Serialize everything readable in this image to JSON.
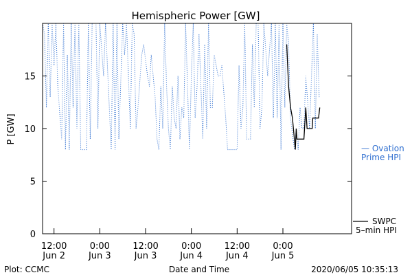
{
  "chart_data": {
    "type": "line",
    "title": "Hemispheric Power [GW]",
    "ylabel": "P [GW]",
    "xlabel": "Date and Time",
    "ylim": [
      0,
      20
    ],
    "yticks": [
      0,
      5,
      10,
      15
    ],
    "xlim": [
      "2020-06-02T09:00",
      "2020-06-05T18:00"
    ],
    "xticks": [
      {
        "t": "2020-06-02T12:00",
        "line1": "12:00",
        "line2": "Jun 2"
      },
      {
        "t": "2020-06-03T00:00",
        "line1": "0:00",
        "line2": "Jun 3"
      },
      {
        "t": "2020-06-03T12:00",
        "line1": "12:00",
        "line2": "Jun 3"
      },
      {
        "t": "2020-06-04T00:00",
        "line1": "0:00",
        "line2": "Jun 4"
      },
      {
        "t": "2020-06-04T12:00",
        "line1": "12:00",
        "line2": "Jun 4"
      },
      {
        "t": "2020-06-05T00:00",
        "line1": "0:00",
        "line2": "Jun 5"
      }
    ],
    "grid": false,
    "legend_placement": "right",
    "series": [
      {
        "name": "Ovation Prime HPI",
        "color": "#2f6fd0",
        "style": "dotted",
        "points": [
          [
            "2020-06-02T09:00",
            20
          ],
          [
            "2020-06-02T09:30",
            19
          ],
          [
            "2020-06-02T10:00",
            12
          ],
          [
            "2020-06-02T10:30",
            20
          ],
          [
            "2020-06-02T11:00",
            13
          ],
          [
            "2020-06-02T11:30",
            20
          ],
          [
            "2020-06-02T12:00",
            16
          ],
          [
            "2020-06-02T12:30",
            20
          ],
          [
            "2020-06-02T13:00",
            14
          ],
          [
            "2020-06-02T14:00",
            9
          ],
          [
            "2020-06-02T14:30",
            20
          ],
          [
            "2020-06-02T15:00",
            8
          ],
          [
            "2020-06-02T15:30",
            17
          ],
          [
            "2020-06-02T16:00",
            8
          ],
          [
            "2020-06-02T16:30",
            20
          ],
          [
            "2020-06-02T17:00",
            12
          ],
          [
            "2020-06-02T17:30",
            20
          ],
          [
            "2020-06-02T18:00",
            10
          ],
          [
            "2020-06-02T18:30",
            20
          ],
          [
            "2020-06-02T19:00",
            8
          ],
          [
            "2020-06-02T20:30",
            8
          ],
          [
            "2020-06-02T21:00",
            20
          ],
          [
            "2020-06-02T21:30",
            9
          ],
          [
            "2020-06-02T22:00",
            20
          ],
          [
            "2020-06-02T23:00",
            20
          ],
          [
            "2020-06-02T23:30",
            10
          ],
          [
            "2020-06-03T00:00",
            20
          ],
          [
            "2020-06-03T01:00",
            15
          ],
          [
            "2020-06-03T01:30",
            20
          ],
          [
            "2020-06-03T02:00",
            16
          ],
          [
            "2020-06-03T03:00",
            8
          ],
          [
            "2020-06-03T03:30",
            20
          ],
          [
            "2020-06-03T04:00",
            8
          ],
          [
            "2020-06-03T04:30",
            20
          ],
          [
            "2020-06-03T05:00",
            9
          ],
          [
            "2020-06-03T06:00",
            20
          ],
          [
            "2020-06-03T06:30",
            17
          ],
          [
            "2020-06-03T07:00",
            20
          ],
          [
            "2020-06-03T08:00",
            10
          ],
          [
            "2020-06-03T08:30",
            20
          ],
          [
            "2020-06-03T09:00",
            19
          ],
          [
            "2020-06-03T09:30",
            10
          ],
          [
            "2020-06-03T10:00",
            12
          ],
          [
            "2020-06-03T11:00",
            17
          ],
          [
            "2020-06-03T11:30",
            18
          ],
          [
            "2020-06-03T12:30",
            15
          ],
          [
            "2020-06-03T13:00",
            14
          ],
          [
            "2020-06-03T13:30",
            17
          ],
          [
            "2020-06-03T14:30",
            13
          ],
          [
            "2020-06-03T15:00",
            9
          ],
          [
            "2020-06-03T15:30",
            8
          ],
          [
            "2020-06-03T16:00",
            14
          ],
          [
            "2020-06-03T16:30",
            10
          ],
          [
            "2020-06-03T17:00",
            20
          ],
          [
            "2020-06-03T17:30",
            14
          ],
          [
            "2020-06-03T18:00",
            10
          ],
          [
            "2020-06-03T18:30",
            8
          ],
          [
            "2020-06-03T19:00",
            14
          ],
          [
            "2020-06-03T19:30",
            11
          ],
          [
            "2020-06-03T20:00",
            10
          ],
          [
            "2020-06-03T20:30",
            15
          ],
          [
            "2020-06-03T21:00",
            9
          ],
          [
            "2020-06-03T21:30",
            12
          ],
          [
            "2020-06-03T22:00",
            11
          ],
          [
            "2020-06-03T22:30",
            20
          ],
          [
            "2020-06-03T23:30",
            8
          ],
          [
            "2020-06-04T00:00",
            15
          ],
          [
            "2020-06-04T00:30",
            20
          ],
          [
            "2020-06-04T01:00",
            11
          ],
          [
            "2020-06-04T01:30",
            14
          ],
          [
            "2020-06-04T02:00",
            19
          ],
          [
            "2020-06-04T03:00",
            9
          ],
          [
            "2020-06-04T03:30",
            18
          ],
          [
            "2020-06-04T04:00",
            10
          ],
          [
            "2020-06-04T04:30",
            20
          ],
          [
            "2020-06-04T05:00",
            12
          ],
          [
            "2020-06-04T05:30",
            12
          ],
          [
            "2020-06-04T06:00",
            17
          ],
          [
            "2020-06-04T07:00",
            15
          ],
          [
            "2020-06-04T07:30",
            15
          ],
          [
            "2020-06-04T08:00",
            16
          ],
          [
            "2020-06-04T09:00",
            11
          ],
          [
            "2020-06-04T09:30",
            8
          ],
          [
            "2020-06-04T12:00",
            8
          ],
          [
            "2020-06-04T12:30",
            16
          ],
          [
            "2020-06-04T13:00",
            10
          ],
          [
            "2020-06-04T13:30",
            12
          ],
          [
            "2020-06-04T14:00",
            20
          ],
          [
            "2020-06-04T14:30",
            9
          ],
          [
            "2020-06-04T15:30",
            9
          ],
          [
            "2020-06-04T16:00",
            18
          ],
          [
            "2020-06-04T16:30",
            12
          ],
          [
            "2020-06-04T17:00",
            20
          ],
          [
            "2020-06-04T17:30",
            20
          ],
          [
            "2020-06-04T18:00",
            10
          ],
          [
            "2020-06-04T18:30",
            12
          ],
          [
            "2020-06-04T19:00",
            20
          ],
          [
            "2020-06-04T20:00",
            15
          ],
          [
            "2020-06-04T21:00",
            20
          ],
          [
            "2020-06-04T21:30",
            11
          ],
          [
            "2020-06-04T22:00",
            20
          ],
          [
            "2020-06-04T22:30",
            11
          ],
          [
            "2020-06-04T23:00",
            20
          ],
          [
            "2020-06-04T23:30",
            8
          ],
          [
            "2020-06-05T00:00",
            20
          ],
          [
            "2020-06-05T00:30",
            12
          ],
          [
            "2020-06-05T01:00",
            20
          ],
          [
            "2020-06-05T01:30",
            18
          ],
          [
            "2020-06-05T02:00",
            11
          ],
          [
            "2020-06-05T03:00",
            8
          ],
          [
            "2020-06-05T03:30",
            10
          ],
          [
            "2020-06-05T04:00",
            8
          ],
          [
            "2020-06-05T04:30",
            12
          ],
          [
            "2020-06-05T05:00",
            10
          ],
          [
            "2020-06-05T05:30",
            10
          ],
          [
            "2020-06-05T06:00",
            15
          ],
          [
            "2020-06-05T07:00",
            10
          ],
          [
            "2020-06-05T08:00",
            20
          ],
          [
            "2020-06-05T08:30",
            10
          ],
          [
            "2020-06-05T09:00",
            19
          ],
          [
            "2020-06-05T09:30",
            13
          ]
        ]
      },
      {
        "name": "SWPC 5-min HPI",
        "color": "#000000",
        "style": "solid",
        "points": [
          [
            "2020-06-05T01:00",
            18
          ],
          [
            "2020-06-05T01:15",
            16
          ],
          [
            "2020-06-05T01:30",
            14
          ],
          [
            "2020-06-05T02:00",
            12
          ],
          [
            "2020-06-05T02:30",
            11
          ],
          [
            "2020-06-05T03:00",
            9
          ],
          [
            "2020-06-05T03:15",
            8
          ],
          [
            "2020-06-05T03:30",
            10
          ],
          [
            "2020-06-05T03:40",
            9
          ],
          [
            "2020-06-05T05:30",
            9
          ],
          [
            "2020-06-05T05:40",
            10
          ],
          [
            "2020-06-05T06:00",
            12
          ],
          [
            "2020-06-05T06:20",
            10
          ],
          [
            "2020-06-05T07:40",
            10
          ],
          [
            "2020-06-05T07:50",
            11
          ],
          [
            "2020-06-05T09:20",
            11
          ],
          [
            "2020-06-05T09:40",
            12
          ]
        ]
      }
    ]
  },
  "legend": {
    "ovation_line1": "— Ovation",
    "ovation_line2": "Prime HPI",
    "swpc_line1": "SWPC",
    "swpc_line2": "5–min HPI"
  },
  "footer": {
    "left": "Plot: CCMC",
    "center": "Date and Time",
    "right": "2020/06/05 10:35:13"
  }
}
